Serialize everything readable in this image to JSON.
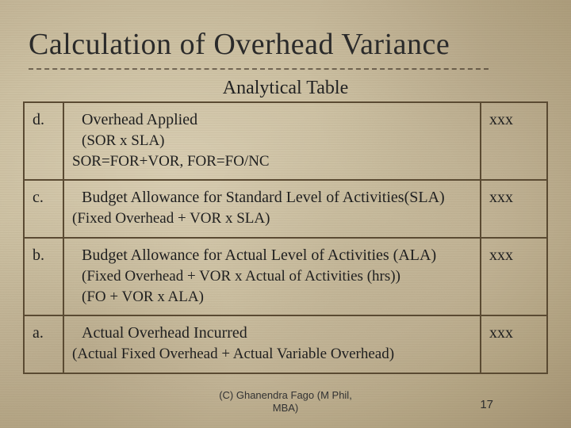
{
  "title": "Calculation of Overhead Variance",
  "subtitle": "Analytical Table",
  "rows": [
    {
      "label": "d.",
      "lines": [
        "Overhead Applied",
        "(SOR x SLA)",
        "SOR=FOR+VOR, FOR=FO/NC"
      ],
      "value": "xxx"
    },
    {
      "label": "c.",
      "lines": [
        "Budget Allowance for Standard Level of Activities(SLA)",
        "(Fixed Overhead + VOR x SLA)"
      ],
      "value": "xxx"
    },
    {
      "label": "b.",
      "lines": [
        "Budget Allowance for Actual Level of Activities (ALA)",
        "(Fixed Overhead + VOR x Actual of Activities (hrs))",
        "(FO + VOR x ALA)"
      ],
      "value": "xxx"
    },
    {
      "label": "a.",
      "lines": [
        "Actual Overhead Incurred",
        "(Actual Fixed Overhead + Actual Variable Overhead)"
      ],
      "value": "xxx"
    }
  ],
  "footer_line1": "(C) Ghanendra Fago (M Phil,",
  "footer_line2": "MBA)",
  "page_number": "17",
  "style": {
    "title_fontsize": 38,
    "subtitle_fontsize": 24,
    "cell_fontsize": 20,
    "border_color": "#5a4a32",
    "text_color": "#1f1f1f",
    "bg_base": "#c0b294"
  }
}
